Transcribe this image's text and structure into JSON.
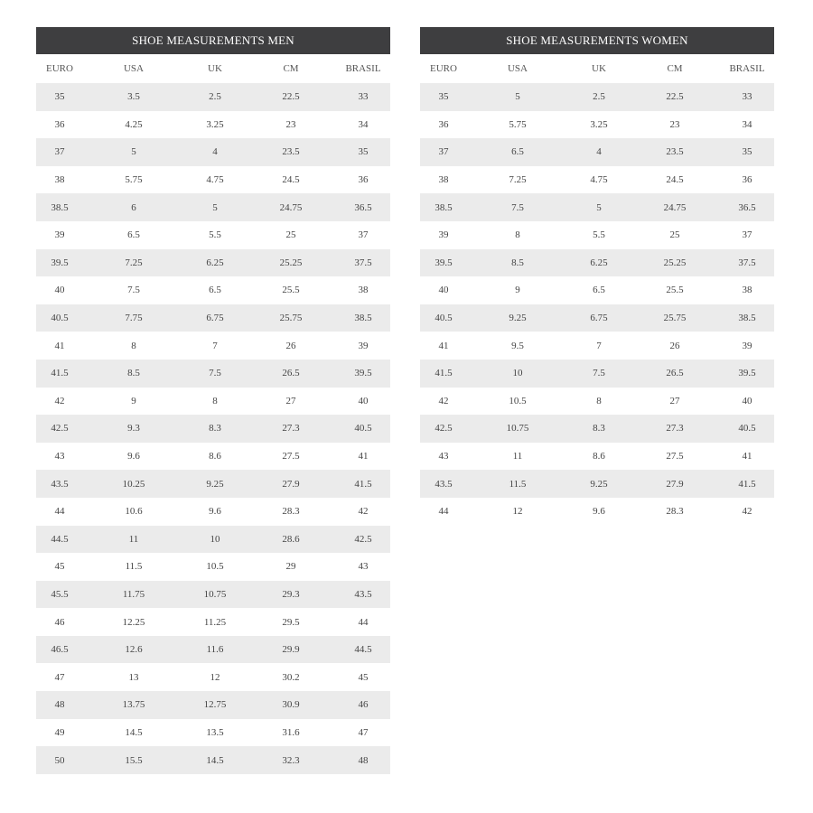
{
  "columns": [
    "EURO",
    "USA",
    "UK",
    "CM",
    "BRASIL"
  ],
  "men": {
    "title": "SHOE MEASUREMENTS MEN",
    "rows": [
      [
        "35",
        "3.5",
        "2.5",
        "22.5",
        "33"
      ],
      [
        "36",
        "4.25",
        "3.25",
        "23",
        "34"
      ],
      [
        "37",
        "5",
        "4",
        "23.5",
        "35"
      ],
      [
        "38",
        "5.75",
        "4.75",
        "24.5",
        "36"
      ],
      [
        "38.5",
        "6",
        "5",
        "24.75",
        "36.5"
      ],
      [
        "39",
        "6.5",
        "5.5",
        "25",
        "37"
      ],
      [
        "39.5",
        "7.25",
        "6.25",
        "25.25",
        "37.5"
      ],
      [
        "40",
        "7.5",
        "6.5",
        "25.5",
        "38"
      ],
      [
        "40.5",
        "7.75",
        "6.75",
        "25.75",
        "38.5"
      ],
      [
        "41",
        "8",
        "7",
        "26",
        "39"
      ],
      [
        "41.5",
        "8.5",
        "7.5",
        "26.5",
        "39.5"
      ],
      [
        "42",
        "9",
        "8",
        "27",
        "40"
      ],
      [
        "42.5",
        "9.3",
        "8.3",
        "27.3",
        "40.5"
      ],
      [
        "43",
        "9.6",
        "8.6",
        "27.5",
        "41"
      ],
      [
        "43.5",
        "10.25",
        "9.25",
        "27.9",
        "41.5"
      ],
      [
        "44",
        "10.6",
        "9.6",
        "28.3",
        "42"
      ],
      [
        "44.5",
        "11",
        "10",
        "28.6",
        "42.5"
      ],
      [
        "45",
        "11.5",
        "10.5",
        "29",
        "43"
      ],
      [
        "45.5",
        "11.75",
        "10.75",
        "29.3",
        "43.5"
      ],
      [
        "46",
        "12.25",
        "11.25",
        "29.5",
        "44"
      ],
      [
        "46.5",
        "12.6",
        "11.6",
        "29.9",
        "44.5"
      ],
      [
        "47",
        "13",
        "12",
        "30.2",
        "45"
      ],
      [
        "48",
        "13.75",
        "12.75",
        "30.9",
        "46"
      ],
      [
        "49",
        "14.5",
        "13.5",
        "31.6",
        "47"
      ],
      [
        "50",
        "15.5",
        "14.5",
        "32.3",
        "48"
      ]
    ]
  },
  "women": {
    "title": "SHOE MEASUREMENTS WOMEN",
    "rows": [
      [
        "35",
        "5",
        "2.5",
        "22.5",
        "33"
      ],
      [
        "36",
        "5.75",
        "3.25",
        "23",
        "34"
      ],
      [
        "37",
        "6.5",
        "4",
        "23.5",
        "35"
      ],
      [
        "38",
        "7.25",
        "4.75",
        "24.5",
        "36"
      ],
      [
        "38.5",
        "7.5",
        "5",
        "24.75",
        "36.5"
      ],
      [
        "39",
        "8",
        "5.5",
        "25",
        "37"
      ],
      [
        "39.5",
        "8.5",
        "6.25",
        "25.25",
        "37.5"
      ],
      [
        "40",
        "9",
        "6.5",
        "25.5",
        "38"
      ],
      [
        "40.5",
        "9.25",
        "6.75",
        "25.75",
        "38.5"
      ],
      [
        "41",
        "9.5",
        "7",
        "26",
        "39"
      ],
      [
        "41.5",
        "10",
        "7.5",
        "26.5",
        "39.5"
      ],
      [
        "42",
        "10.5",
        "8",
        "27",
        "40"
      ],
      [
        "42.5",
        "10.75",
        "8.3",
        "27.3",
        "40.5"
      ],
      [
        "43",
        "11",
        "8.6",
        "27.5",
        "41"
      ],
      [
        "43.5",
        "11.5",
        "9.25",
        "27.9",
        "41.5"
      ],
      [
        "44",
        "12",
        "9.6",
        "28.3",
        "42"
      ]
    ]
  },
  "colors": {
    "header_bg": "#3e3e40",
    "stripe": "#ebebeb"
  }
}
